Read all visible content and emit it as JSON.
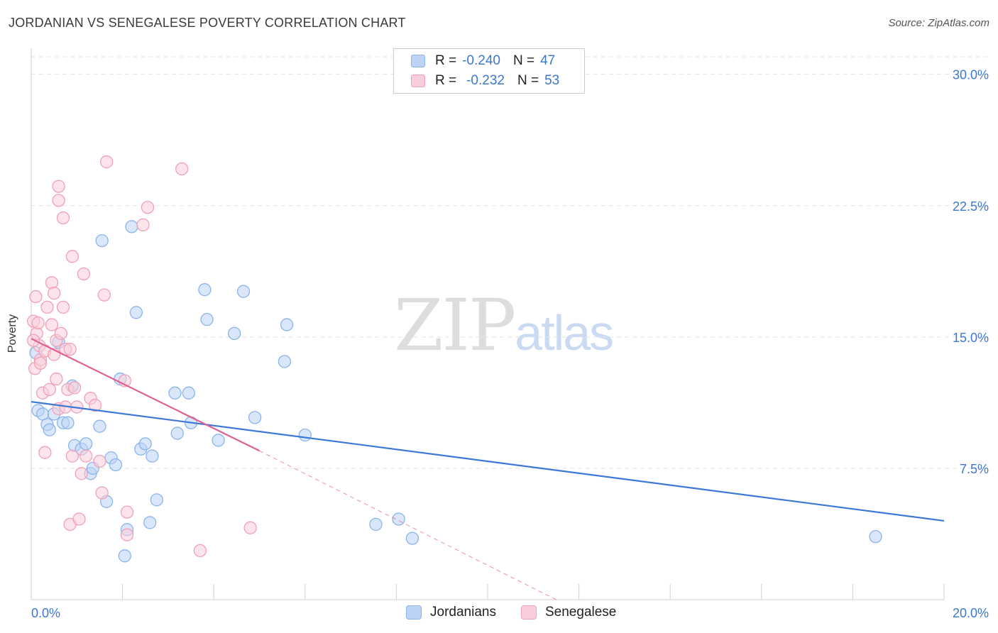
{
  "title": "JORDANIAN VS SENEGALESE POVERTY CORRELATION CHART",
  "source": "Source: ZipAtlas.com",
  "watermark": {
    "zip": "ZIP",
    "atlas": "atlas"
  },
  "legend": {
    "rows": [
      {
        "r_label": "R =",
        "r_value": "-0.240",
        "n_label": "N =",
        "n_value": "47",
        "color": "#8ab4ea",
        "fill": "#bcd3f5"
      },
      {
        "r_label": "R =",
        "r_value": "-0.232",
        "n_label": "N =",
        "n_value": "53",
        "color": "#f0a0b8",
        "fill": "#f9cdd9"
      }
    ]
  },
  "bottom_legend": {
    "jordanians": "Jordanians",
    "senegalese": "Senegalese"
  },
  "chart_data": {
    "type": "scatter",
    "title": "JORDANIAN VS SENEGALESE POVERTY CORRELATION CHART",
    "ylabel": "Poverty",
    "xlabel": "",
    "xlim": [
      0,
      20
    ],
    "ylim": [
      0,
      31
    ],
    "x_tick_labels": [
      "0.0%",
      "20.0%"
    ],
    "y_ticks": [
      7.5,
      15.0,
      22.5,
      30.0
    ],
    "y_tick_labels": [
      "7.5%",
      "15.0%",
      "22.5%",
      "30.0%"
    ],
    "grid": true,
    "series": [
      {
        "name": "Jordanians",
        "color": "#3c78d8",
        "fill": "#bcd3f5",
        "stroke": "#8ab4ea",
        "points": [
          [
            0.15,
            10.8
          ],
          [
            0.25,
            10.6
          ],
          [
            0.35,
            10.0
          ],
          [
            0.4,
            9.7
          ],
          [
            0.5,
            10.6
          ],
          [
            0.6,
            14.7
          ],
          [
            0.7,
            10.1
          ],
          [
            0.8,
            10.1
          ],
          [
            0.9,
            12.2
          ],
          [
            0.95,
            8.8
          ],
          [
            1.1,
            8.6
          ],
          [
            1.2,
            8.9
          ],
          [
            1.3,
            7.2
          ],
          [
            1.35,
            7.5
          ],
          [
            1.5,
            9.9
          ],
          [
            1.55,
            20.5
          ],
          [
            1.65,
            5.6
          ],
          [
            1.75,
            8.1
          ],
          [
            1.85,
            7.7
          ],
          [
            1.95,
            12.6
          ],
          [
            2.05,
            2.5
          ],
          [
            2.1,
            4.0
          ],
          [
            2.2,
            21.3
          ],
          [
            2.3,
            16.4
          ],
          [
            2.4,
            8.6
          ],
          [
            2.5,
            8.9
          ],
          [
            2.6,
            4.4
          ],
          [
            2.65,
            8.2
          ],
          [
            2.75,
            5.7
          ],
          [
            3.15,
            11.8
          ],
          [
            3.2,
            9.5
          ],
          [
            3.45,
            11.8
          ],
          [
            3.5,
            10.1
          ],
          [
            3.8,
            17.7
          ],
          [
            3.85,
            16.0
          ],
          [
            4.1,
            9.1
          ],
          [
            4.45,
            15.2
          ],
          [
            4.65,
            17.6
          ],
          [
            4.9,
            10.4
          ],
          [
            5.55,
            13.6
          ],
          [
            5.6,
            15.7
          ],
          [
            6.0,
            9.4
          ],
          [
            7.55,
            4.3
          ],
          [
            8.05,
            4.6
          ],
          [
            8.35,
            3.5
          ],
          [
            18.5,
            3.6
          ],
          [
            0.1,
            14.1
          ]
        ],
        "trend": {
          "x0": 0,
          "y0": 11.3,
          "x1": 20,
          "y1": 4.5
        }
      },
      {
        "name": "Senegalese",
        "color": "#e06090",
        "fill": "#f9cdd9",
        "stroke": "#f0a0b8",
        "points": [
          [
            0.05,
            15.9
          ],
          [
            0.08,
            13.2
          ],
          [
            0.1,
            17.3
          ],
          [
            0.12,
            15.2
          ],
          [
            0.15,
            15.8
          ],
          [
            0.18,
            14.5
          ],
          [
            0.2,
            13.7
          ],
          [
            0.25,
            11.8
          ],
          [
            0.3,
            14.2
          ],
          [
            0.3,
            8.4
          ],
          [
            0.35,
            16.7
          ],
          [
            0.4,
            12.0
          ],
          [
            0.45,
            18.1
          ],
          [
            0.45,
            15.7
          ],
          [
            0.5,
            17.5
          ],
          [
            0.5,
            14.0
          ],
          [
            0.55,
            12.6
          ],
          [
            0.55,
            14.8
          ],
          [
            0.6,
            10.9
          ],
          [
            0.6,
            22.8
          ],
          [
            0.6,
            23.6
          ],
          [
            0.65,
            15.2
          ],
          [
            0.7,
            21.8
          ],
          [
            0.7,
            16.7
          ],
          [
            0.75,
            11.0
          ],
          [
            0.75,
            14.3
          ],
          [
            0.8,
            12.0
          ],
          [
            0.85,
            14.3
          ],
          [
            0.9,
            19.6
          ],
          [
            0.85,
            4.3
          ],
          [
            0.9,
            8.2
          ],
          [
            0.95,
            12.1
          ],
          [
            1.0,
            11.0
          ],
          [
            1.1,
            7.2
          ],
          [
            1.05,
            4.6
          ],
          [
            1.15,
            18.6
          ],
          [
            1.2,
            8.2
          ],
          [
            1.3,
            11.5
          ],
          [
            1.4,
            11.1
          ],
          [
            1.5,
            7.9
          ],
          [
            1.55,
            6.1
          ],
          [
            1.6,
            17.4
          ],
          [
            1.65,
            25.0
          ],
          [
            2.05,
            12.5
          ],
          [
            2.1,
            3.7
          ],
          [
            2.1,
            5.0
          ],
          [
            2.45,
            21.4
          ],
          [
            2.55,
            22.4
          ],
          [
            3.3,
            24.6
          ],
          [
            3.7,
            2.8
          ],
          [
            4.8,
            4.1
          ],
          [
            0.05,
            14.8
          ],
          [
            0.2,
            13.5
          ]
        ],
        "trend": {
          "x0": 0,
          "y0": 14.9,
          "x1": 5.0,
          "y1": 8.5
        },
        "trend_extension": {
          "x0": 5.0,
          "y0": 8.5,
          "x1": 11.5,
          "y1": 0.0
        }
      }
    ]
  }
}
